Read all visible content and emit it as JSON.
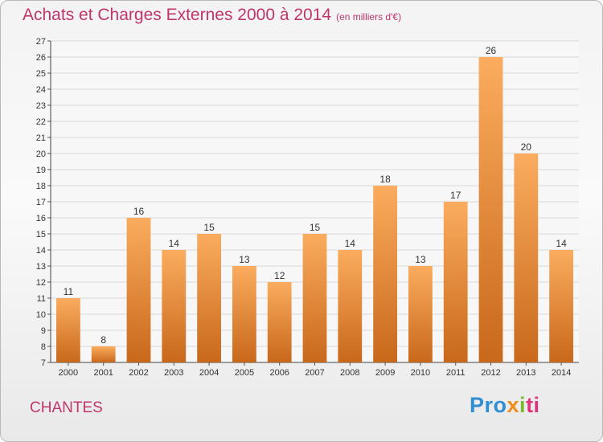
{
  "title": "Achats et Charges Externes 2000 à 2014",
  "unit_note": "(en milliers d'€)",
  "commune": "CHANTES",
  "logo": {
    "p1": "Pro",
    "p2": "x",
    "p3": "i",
    "p4": "ti"
  },
  "colors": {
    "title": "#c0356b",
    "bar_light": "#fbac5e",
    "bar_dark": "#c8681b",
    "grid": "#d8d8d8"
  },
  "chart_data": {
    "type": "bar",
    "title": "Achats et Charges Externes 2000 à 2014",
    "subtitle": "(en milliers d'€)",
    "xlabel": "",
    "ylabel": "",
    "categories": [
      "2000",
      "2001",
      "2002",
      "2003",
      "2004",
      "2005",
      "2006",
      "2007",
      "2008",
      "2009",
      "2010",
      "2011",
      "2012",
      "2013",
      "2014"
    ],
    "values": [
      11,
      8,
      16,
      14,
      15,
      13,
      12,
      15,
      14,
      18,
      13,
      17,
      26,
      20,
      14
    ],
    "ylim": [
      7,
      27
    ],
    "yticks": [
      7,
      8,
      9,
      10,
      11,
      12,
      13,
      14,
      15,
      16,
      17,
      18,
      19,
      20,
      21,
      22,
      23,
      24,
      25,
      26,
      27
    ],
    "grid": true,
    "data_labels": true
  }
}
